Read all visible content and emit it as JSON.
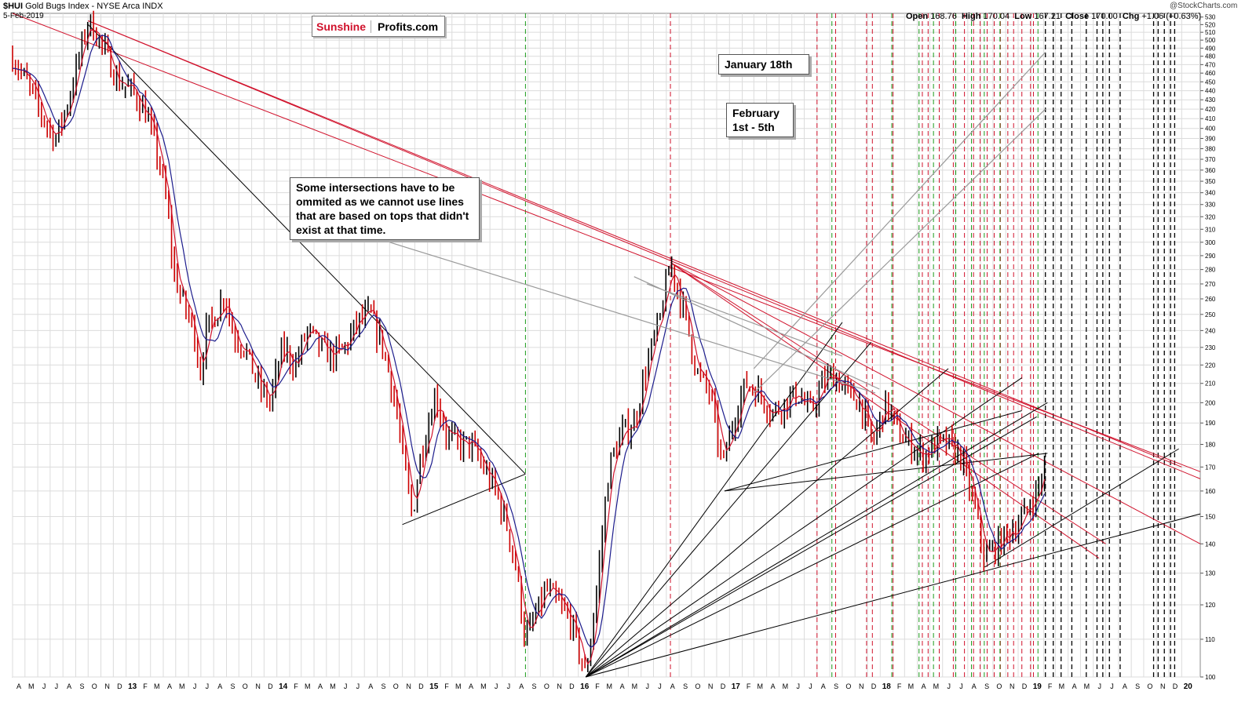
{
  "header": {
    "symbol": "$HUI",
    "name": "Gold Bugs Index - NYSE Arca INDX",
    "date": "5-Feb-2019",
    "open_label": "Open",
    "open": "168.76",
    "high_label": "High",
    "high": "170.04",
    "low_label": "Low",
    "low": "167.21",
    "close_label": "Close",
    "close": "170.00",
    "chg_label": "Chg",
    "chg": "+1.06 (+0.63%)",
    "watermark": "@StockCharts.com"
  },
  "brand": {
    "part1": "Sunshine",
    "part2": "Profits.com"
  },
  "annotations": {
    "jan": "January 18th",
    "feb_line1": "February",
    "feb_line2": "1st - 5th",
    "note": "Some intersections have to be ommited as we cannot use lines that are based on tops that didn't exist at that time."
  },
  "colors": {
    "price_up": "#000000",
    "price_down": "#cc0000",
    "ma_short": "#d0112b",
    "ma_long": "#1c1c8c",
    "trend_red": "#d0112b",
    "trend_black": "#000000",
    "cycle_red": "#d0112b",
    "cycle_green": "#1a9a1a",
    "cycle_black": "#000000",
    "grid": "#dcdcdc"
  },
  "chart_data": {
    "type": "line",
    "title": "$HUI Gold Bugs Index - NYSE Arca INDX",
    "y_scale": "log",
    "ylim": [
      100,
      535
    ],
    "y_ticks": [
      100,
      110,
      120,
      130,
      140,
      150,
      160,
      170,
      180,
      190,
      200,
      210,
      220,
      230,
      240,
      250,
      260,
      270,
      280,
      290,
      300,
      310,
      320,
      330,
      340,
      350,
      360,
      370,
      380,
      390,
      400,
      410,
      420,
      430,
      440,
      450,
      460,
      470,
      480,
      490,
      500,
      510,
      520,
      530
    ],
    "xlim": [
      "2012-04-01",
      "2020-02-15"
    ],
    "x_tick_labels": [
      "A",
      "M",
      "J",
      "J",
      "A",
      "S",
      "O",
      "N",
      "D",
      "13",
      "F",
      "M",
      "A",
      "M",
      "J",
      "J",
      "A",
      "S",
      "O",
      "N",
      "D",
      "14",
      "F",
      "M",
      "A",
      "M",
      "J",
      "J",
      "A",
      "S",
      "O",
      "N",
      "D",
      "15",
      "F",
      "M",
      "A",
      "M",
      "J",
      "J",
      "A",
      "S",
      "O",
      "N",
      "D",
      "16",
      "F",
      "M",
      "A",
      "M",
      "J",
      "J",
      "A",
      "S",
      "O",
      "N",
      "D",
      "17",
      "F",
      "M",
      "A",
      "M",
      "J",
      "J",
      "A",
      "S",
      "O",
      "N",
      "D",
      "18",
      "F",
      "M",
      "A",
      "M",
      "J",
      "J",
      "A",
      "S",
      "O",
      "N",
      "D",
      "19",
      "F",
      "M",
      "A",
      "M",
      "J",
      "J",
      "A",
      "S",
      "O",
      "N",
      "D",
      "20"
    ],
    "grid": true,
    "series": [
      {
        "name": "",
        "x": [
          "2012-04-01",
          "2012-05-15",
          "2012-06-15",
          "2012-07-15",
          "2012-08-15",
          "2012-09-15",
          "2012-10-01",
          "2012-10-20",
          "2012-11-15",
          "2012-12-15",
          "2013-01-15",
          "2013-02-15",
          "2013-03-15",
          "2013-04-10",
          "2013-04-25",
          "2013-05-15",
          "2013-06-15",
          "2013-06-28",
          "2013-07-15",
          "2013-08-15",
          "2013-08-28",
          "2013-09-15",
          "2013-10-15",
          "2013-11-15",
          "2013-12-15",
          "2014-01-15",
          "2014-02-15",
          "2014-03-15",
          "2014-04-15",
          "2014-05-15",
          "2014-06-15",
          "2014-07-15",
          "2014-08-15",
          "2014-09-15",
          "2014-10-15",
          "2014-11-05",
          "2014-11-25",
          "2014-12-15",
          "2015-01-20",
          "2015-02-15",
          "2015-03-15",
          "2015-04-15",
          "2015-05-15",
          "2015-06-15",
          "2015-07-15",
          "2015-08-05",
          "2015-08-25",
          "2015-09-15",
          "2015-10-15",
          "2015-11-15",
          "2015-12-15",
          "2016-01-19",
          "2016-02-15",
          "2016-03-15",
          "2016-04-15",
          "2016-05-15",
          "2016-06-15",
          "2016-07-15",
          "2016-08-11",
          "2016-09-15",
          "2016-10-15",
          "2016-11-15",
          "2016-12-15",
          "2017-01-15",
          "2017-02-10",
          "2017-03-15",
          "2017-04-15",
          "2017-05-15",
          "2017-06-15",
          "2017-07-15",
          "2017-08-15",
          "2017-09-08",
          "2017-10-15",
          "2017-11-15",
          "2017-12-12",
          "2018-01-15",
          "2018-02-15",
          "2018-03-15",
          "2018-04-15",
          "2018-05-15",
          "2018-06-15",
          "2018-07-15",
          "2018-08-15",
          "2018-09-11",
          "2018-10-15",
          "2018-11-15",
          "2018-12-15",
          "2019-01-15",
          "2019-02-05"
        ],
        "values": [
          480,
          440,
          410,
          390,
          430,
          490,
          525,
          510,
          480,
          450,
          440,
          420,
          380,
          330,
          280,
          260,
          240,
          215,
          240,
          255,
          265,
          240,
          230,
          210,
          200,
          230,
          220,
          240,
          230,
          225,
          230,
          245,
          250,
          230,
          200,
          170,
          150,
          175,
          205,
          185,
          180,
          180,
          170,
          160,
          145,
          130,
          110,
          115,
          125,
          120,
          115,
          100,
          125,
          170,
          185,
          190,
          220,
          245,
          285,
          250,
          215,
          205,
          170,
          195,
          210,
          205,
          195,
          200,
          205,
          195,
          210,
          215,
          205,
          200,
          180,
          200,
          185,
          180,
          175,
          180,
          180,
          175,
          155,
          135,
          140,
          145,
          150,
          160,
          170
        ]
      }
    ],
    "moving_averages": [
      {
        "name": "",
        "lag_months": 1
      },
      {
        "name": "",
        "lag_months": 2
      }
    ],
    "cycle_lines": {
      "red": [
        "2016-08-11",
        "2017-08-01",
        "2017-09-15",
        "2017-11-29",
        "2017-12-13",
        "2018-02-01",
        "2018-04-13",
        "2018-04-27",
        "2018-05-24",
        "2018-06-27",
        "2018-07-24",
        "2018-08-15",
        "2018-08-31",
        "2018-09-17",
        "2018-10-04",
        "2018-10-19",
        "2018-11-06",
        "2018-11-20",
        "2018-12-10",
        "2018-12-31",
        "2019-01-07"
      ],
      "green": [
        "2015-08-26",
        "2017-09-06",
        "2018-01-29",
        "2018-04-05",
        "2018-05-10",
        "2018-07-03",
        "2018-08-10",
        "2018-09-10",
        "2018-10-18",
        "2019-01-18"
      ],
      "black": [
        "2019-02-05",
        "2019-02-24",
        "2019-03-15",
        "2019-04-10",
        "2019-05-15",
        "2019-06-10",
        "2019-06-24",
        "2019-07-10",
        "2019-08-05",
        "2019-10-25",
        "2019-11-05",
        "2019-11-20",
        "2019-12-05",
        "2019-12-15"
      ]
    },
    "trend_lines_red": [
      [
        [
          "2012-04-01",
          535
        ],
        [
          "2020-02-15",
          168
        ]
      ],
      [
        [
          "2012-10-01",
          525
        ],
        [
          "2020-02-15",
          165
        ]
      ],
      [
        [
          "2012-10-01",
          525
        ],
        [
          "2020-01-01",
          170
        ]
      ],
      [
        [
          "2016-08-11",
          285
        ],
        [
          "2020-02-15",
          140
        ]
      ],
      [
        [
          "2016-08-11",
          285
        ],
        [
          "2019-07-01",
          140
        ]
      ],
      [
        [
          "2016-08-11",
          285
        ],
        [
          "2019-06-15",
          135
        ]
      ]
    ],
    "trend_lines_black": [
      [
        [
          "2012-10-01",
          520
        ],
        [
          "2015-08-26",
          167
        ]
      ],
      [
        [
          "2014-11-01",
          147
        ],
        [
          "2015-08-26",
          167
        ]
      ],
      [
        [
          "2016-01-19",
          100
        ],
        [
          "2017-10-01",
          245
        ]
      ],
      [
        [
          "2016-01-19",
          100
        ],
        [
          "2017-12-10",
          233
        ]
      ],
      [
        [
          "2016-01-19",
          100
        ],
        [
          "2018-06-15",
          218
        ]
      ],
      [
        [
          "2016-01-19",
          100
        ],
        [
          "2018-12-10",
          213
        ]
      ],
      [
        [
          "2016-01-19",
          100
        ],
        [
          "2019-02-10",
          200
        ]
      ],
      [
        [
          "2016-01-19",
          100
        ],
        [
          "2019-01-15",
          193
        ]
      ],
      [
        [
          "2016-01-19",
          100
        ],
        [
          "2019-01-20",
          176
        ]
      ],
      [
        [
          "2016-01-19",
          100
        ],
        [
          "2020-02-15",
          151
        ]
      ],
      [
        [
          "2016-12-20",
          160
        ],
        [
          "2018-12-10",
          196
        ]
      ],
      [
        [
          "2016-12-20",
          160
        ],
        [
          "2019-02-10",
          176
        ]
      ],
      [
        [
          "2018-09-11",
          132
        ],
        [
          "2019-12-25",
          178
        ]
      ]
    ],
    "annotation_lines_gray": [
      [
        [
          "2017-03-01",
          218
        ],
        [
          "2019-02-05",
          485
        ]
      ],
      [
        [
          "2017-03-01",
          205
        ],
        [
          "2019-02-05",
          420
        ]
      ],
      [
        [
          "2014-10-01",
          300
        ],
        [
          "2017-12-20",
          205
        ]
      ],
      [
        [
          "2016-05-15",
          275
        ],
        [
          "2017-12-30",
          207
        ]
      ],
      [
        [
          "2016-06-15",
          270
        ],
        [
          "2017-10-01",
          225
        ]
      ]
    ]
  }
}
